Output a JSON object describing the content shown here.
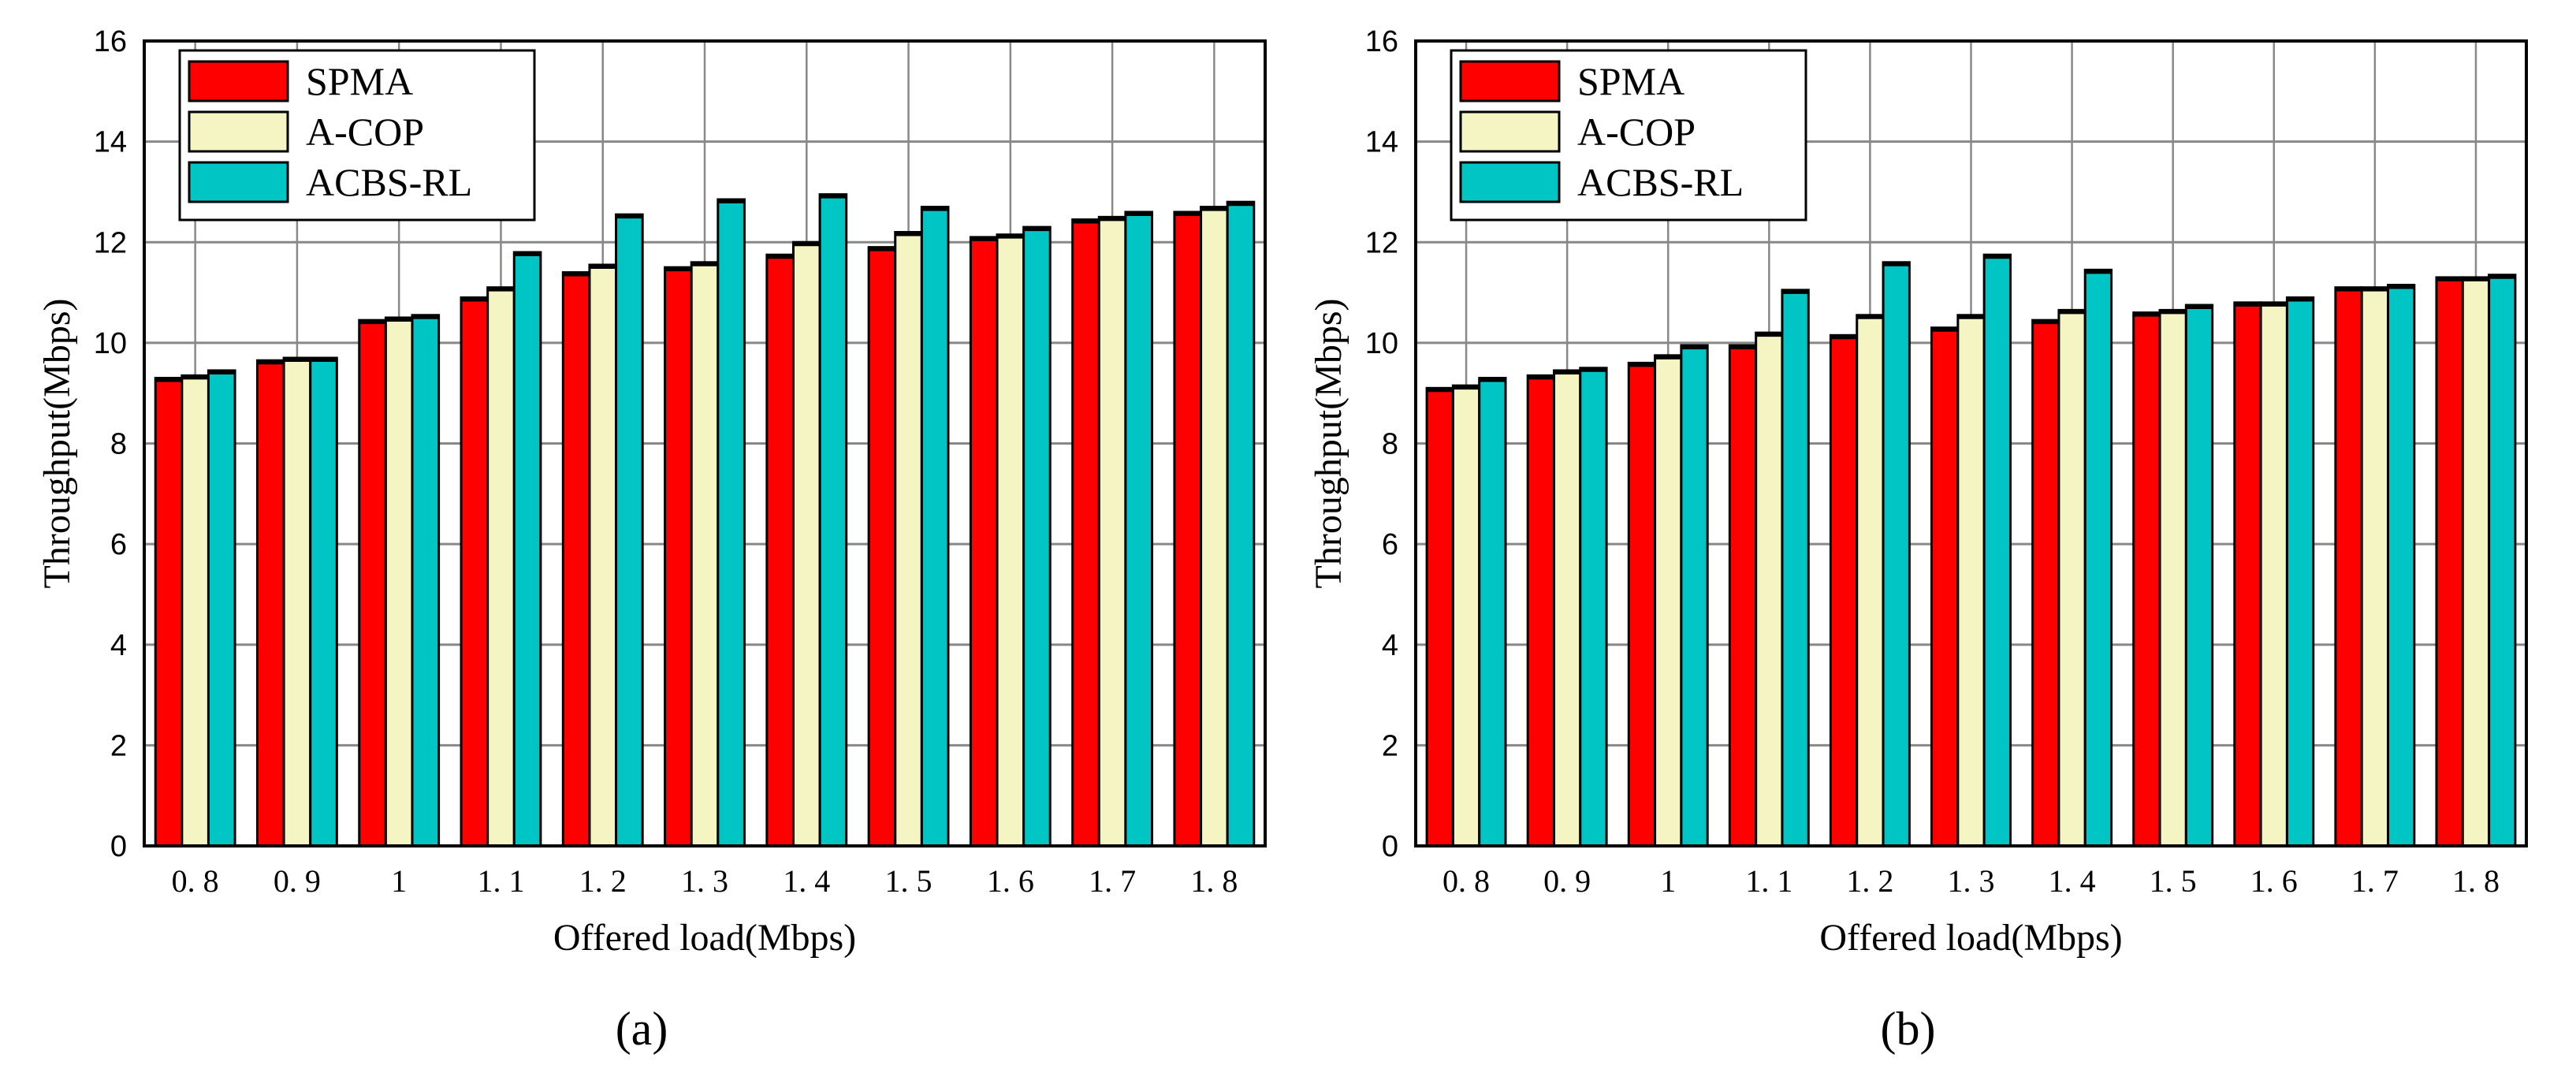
{
  "chart_data": [
    {
      "type": "bar",
      "caption": "(a)",
      "xlabel": "Offered load(Mbps)",
      "ylabel": "Throughput(Mbps)",
      "categories": [
        "0. 8",
        "0. 9",
        "1",
        "1. 1",
        "1. 2",
        "1. 3",
        "1. 4",
        "1. 5",
        "1. 6",
        "1. 7",
        "1. 8"
      ],
      "ylim": [
        0,
        16
      ],
      "yticks": [
        0,
        2,
        4,
        6,
        8,
        10,
        12,
        14,
        16
      ],
      "grid": true,
      "legend_position": "top-left",
      "series": [
        {
          "name": "SPMA",
          "color": "#ff0000",
          "values": [
            9.3,
            9.65,
            10.45,
            10.9,
            11.4,
            11.5,
            11.75,
            11.9,
            12.1,
            12.45,
            12.6
          ]
        },
        {
          "name": "A-COP",
          "color": "#f5f5c4",
          "values": [
            9.35,
            9.7,
            10.5,
            11.1,
            11.55,
            11.6,
            12.0,
            12.2,
            12.15,
            12.5,
            12.7
          ]
        },
        {
          "name": "ACBS-RL",
          "color": "#00c5c5",
          "values": [
            9.45,
            9.7,
            10.55,
            11.8,
            12.55,
            12.85,
            12.95,
            12.7,
            12.3,
            12.6,
            12.8
          ]
        }
      ]
    },
    {
      "type": "bar",
      "caption": "(b)",
      "xlabel": "Offered load(Mbps)",
      "ylabel": "Throughput(Mbps)",
      "categories": [
        "0. 8",
        "0. 9",
        "1",
        "1. 1",
        "1. 2",
        "1. 3",
        "1. 4",
        "1. 5",
        "1. 6",
        "1. 7",
        "1. 8"
      ],
      "ylim": [
        0,
        16
      ],
      "yticks": [
        0,
        2,
        4,
        6,
        8,
        10,
        12,
        14,
        16
      ],
      "grid": true,
      "legend_position": "top-left",
      "series": [
        {
          "name": "SPMA",
          "color": "#ff0000",
          "values": [
            9.1,
            9.35,
            9.6,
            9.95,
            10.15,
            10.3,
            10.45,
            10.6,
            10.8,
            11.1,
            11.3
          ]
        },
        {
          "name": "A-COP",
          "color": "#f5f5c4",
          "values": [
            9.15,
            9.45,
            9.75,
            10.2,
            10.55,
            10.55,
            10.65,
            10.65,
            10.8,
            11.1,
            11.3
          ]
        },
        {
          "name": "ACBS-RL",
          "color": "#00c5c5",
          "values": [
            9.3,
            9.5,
            9.95,
            11.05,
            11.6,
            11.75,
            11.45,
            10.75,
            10.9,
            11.15,
            11.35
          ]
        }
      ]
    }
  ]
}
